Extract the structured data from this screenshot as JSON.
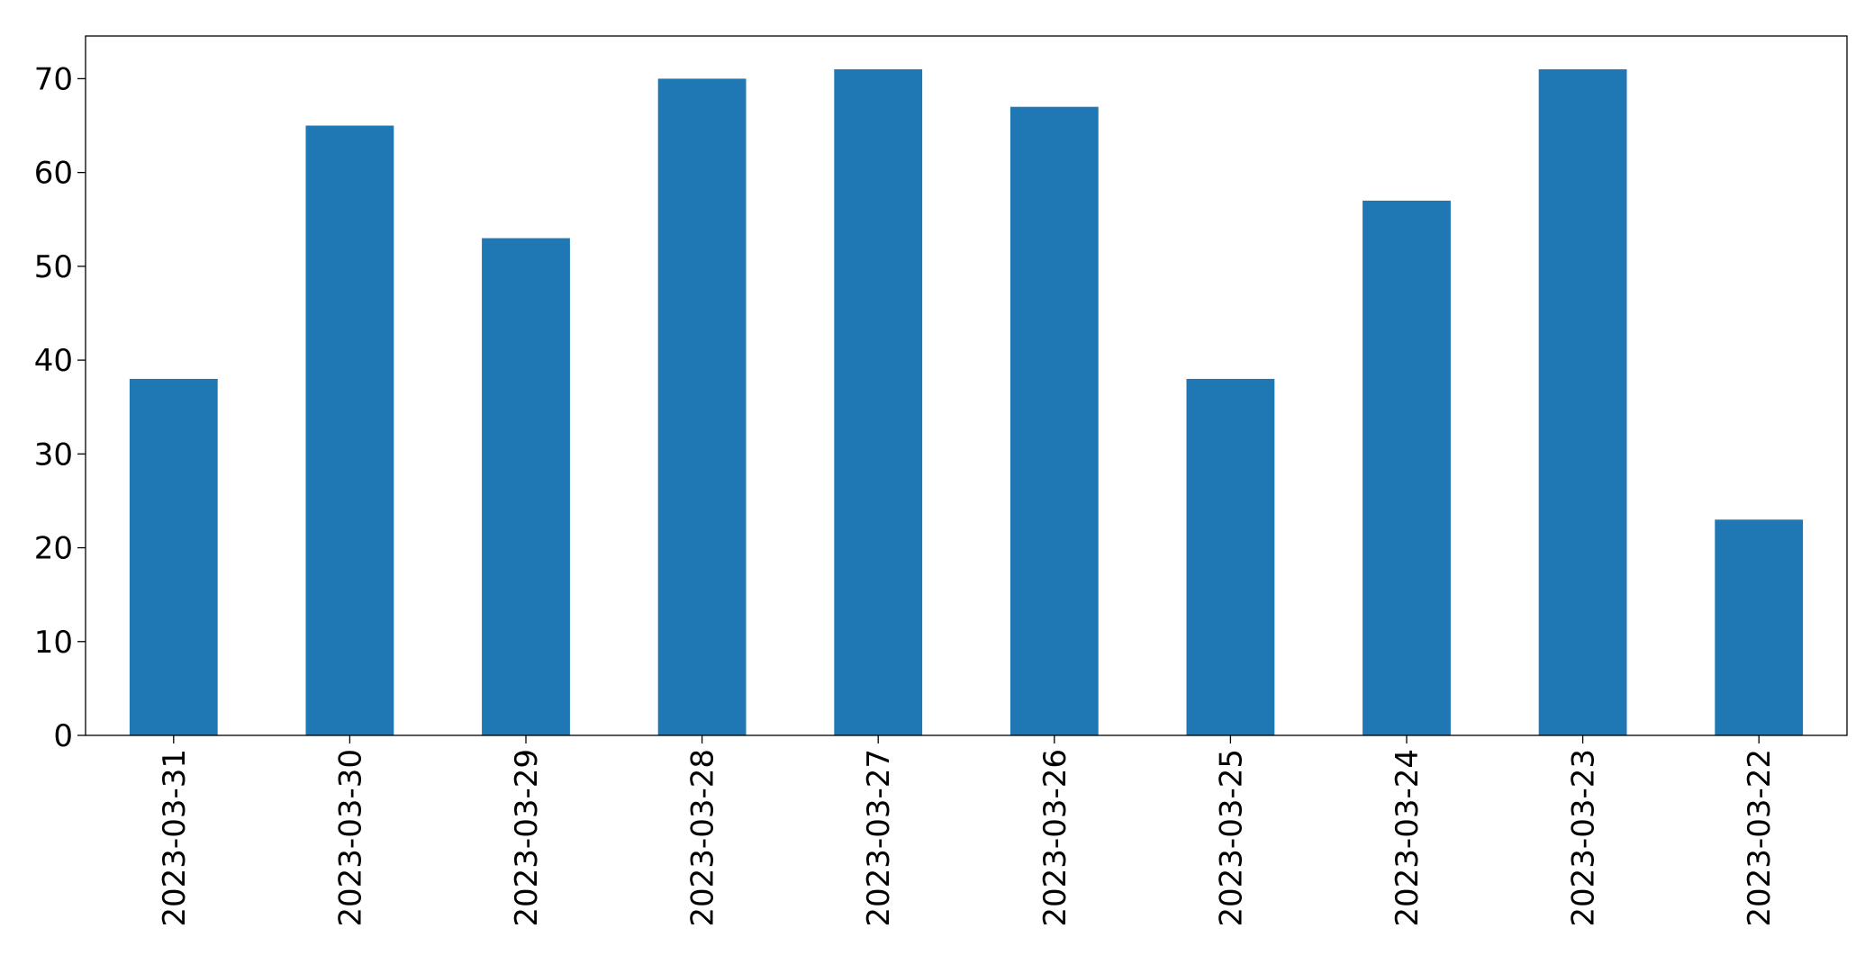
{
  "chart_data": {
    "type": "bar",
    "categories": [
      "2023-03-31",
      "2023-03-30",
      "2023-03-29",
      "2023-03-28",
      "2023-03-27",
      "2023-03-26",
      "2023-03-25",
      "2023-03-24",
      "2023-03-23",
      "2023-03-22"
    ],
    "values": [
      38,
      65,
      53,
      70,
      71,
      67,
      38,
      57,
      71,
      23
    ],
    "color": "#1f77b4",
    "ylim": [
      0,
      74.55
    ],
    "yticks": [
      0,
      10,
      20,
      30,
      40,
      50,
      60,
      70
    ],
    "grid": false
  }
}
